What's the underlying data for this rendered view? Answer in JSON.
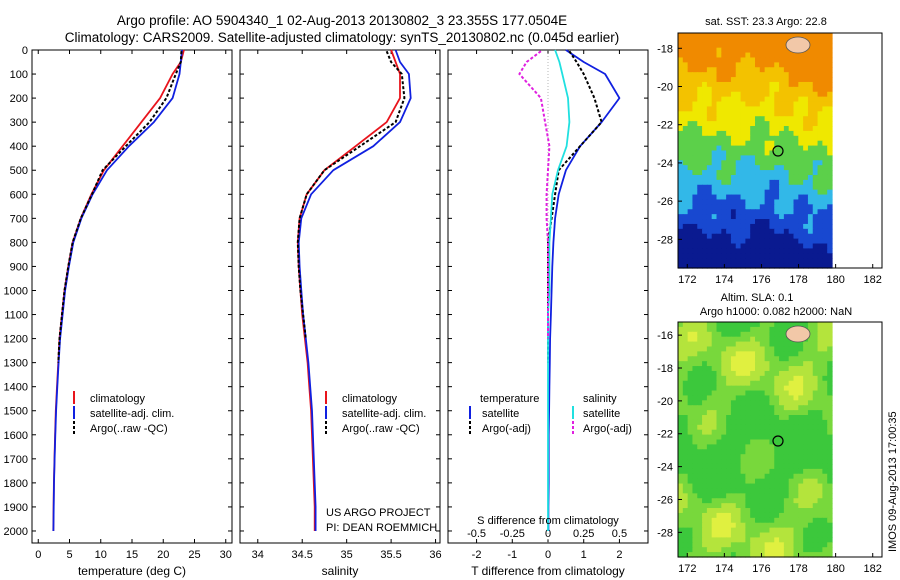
{
  "title_line1": "Argo profile: AO 5904340_1 02-Aug-2013 20130802_3 23.355S 177.0504E",
  "title_line2": "Climatology: CARS2009. Satellite-adjusted climatology: synTS_20130802.nc (0.045d earlier)",
  "depth_ticks": [
    "0",
    "100",
    "200",
    "300",
    "400",
    "500",
    "600",
    "700",
    "800",
    "900",
    "1000",
    "1100",
    "1200",
    "1300",
    "1400",
    "1500",
    "1600",
    "1700",
    "1800",
    "1900",
    "2000"
  ],
  "panel_temp": {
    "xlabel": "temperature (deg C)",
    "ticks": [
      "0",
      "5",
      "10",
      "15",
      "20",
      "25",
      "30"
    ],
    "legend": [
      "climatology",
      "satellite-adj. clim.",
      "Argo(..raw -QC)"
    ]
  },
  "panel_sal": {
    "xlabel": "salinity",
    "ticks": [
      "34",
      "34.5",
      "35",
      "35.5",
      "36"
    ],
    "legend": [
      "climatology",
      "satellite-adj. clim.",
      "Argo(..raw -QC)"
    ],
    "credit1": "US ARGO PROJECT",
    "credit2": "PI: DEAN ROEMMICH"
  },
  "panel_diff": {
    "top_ticks": [
      "-0.5",
      "-0.25",
      "0",
      "0.25",
      "0.5"
    ],
    "bottom_ticks": [
      "-2",
      "-1",
      "0",
      "1",
      "2"
    ],
    "top_label": "S difference from climatology",
    "bottom_label": "T difference from climatology",
    "legend_temp_header": "temperature",
    "legend_sal_header": "salinity",
    "legend_temp": [
      "satellite",
      "Argo(-adj)"
    ],
    "legend_sal": [
      "satellite",
      "Argo(-adj)"
    ]
  },
  "map_sst": {
    "title": "sat. SST: 23.3 Argo: 22.8",
    "yticks": [
      "-18",
      "-20",
      "-22",
      "-24",
      "-26",
      "-28"
    ],
    "xticks": [
      "172",
      "174",
      "176",
      "178",
      "180",
      "182"
    ]
  },
  "map_sla": {
    "title1": "Altim. SLA: 0.1",
    "title2": "Argo h1000: 0.082 h2000: NaN",
    "yticks": [
      "-16",
      "-18",
      "-20",
      "-22",
      "-24",
      "-26",
      "-28"
    ],
    "xticks": [
      "172",
      "174",
      "176",
      "178",
      "180",
      "182"
    ]
  },
  "side_stamp": "IMOS 09-Aug-2013 17:00:35",
  "colors": {
    "climatology": "#e8141c",
    "satellite": "#1020e0",
    "argo": "#000000",
    "sat_salinity": "#20e0e0",
    "argo_salinity": "#e020e0"
  },
  "chart_data": [
    {
      "type": "line",
      "xlabel": "temperature (deg C)",
      "ylabel": "",
      "xlim": [
        -1,
        31
      ],
      "ylim": [
        2050,
        0
      ],
      "series": [
        {
          "name": "climatology",
          "x": [
            23.3,
            22.8,
            21.5,
            19.5,
            16.5,
            13.5,
            10.5,
            8.5,
            6.8,
            5.5,
            4.8,
            4.2,
            3.8,
            3.4,
            3.2,
            3.0,
            2.8,
            2.7,
            2.6,
            2.5,
            2.45,
            2.4
          ],
          "y": [
            0,
            50,
            100,
            200,
            300,
            400,
            500,
            600,
            700,
            800,
            900,
            1000,
            1100,
            1200,
            1300,
            1400,
            1500,
            1600,
            1700,
            1800,
            1900,
            2000
          ]
        },
        {
          "name": "satellite-adj. clim.",
          "x": [
            23.0,
            22.8,
            22.6,
            21.5,
            18.5,
            14.5,
            11.0,
            8.7,
            6.9,
            5.6,
            4.9,
            4.3,
            3.9,
            3.5,
            3.25,
            3.05,
            2.85,
            2.72,
            2.62,
            2.52,
            2.47,
            2.42
          ],
          "y": [
            0,
            50,
            100,
            200,
            300,
            400,
            500,
            600,
            700,
            800,
            900,
            1000,
            1100,
            1200,
            1300,
            1400,
            1500,
            1600,
            1700,
            1800,
            1900,
            2000
          ]
        },
        {
          "name": "Argo(..raw -QC)",
          "x": [
            22.9,
            22.8,
            22.0,
            20.5,
            17.8,
            14.0,
            10.3,
            8.6,
            6.8,
            5.5,
            4.8,
            4.2,
            3.8,
            3.4,
            3.2
          ],
          "y": [
            5,
            50,
            100,
            200,
            300,
            400,
            500,
            600,
            700,
            800,
            900,
            1000,
            1100,
            1200,
            1300
          ]
        }
      ]
    },
    {
      "type": "line",
      "xlabel": "salinity",
      "ylabel": "",
      "xlim": [
        33.8,
        36.05
      ],
      "ylim": [
        2050,
        0
      ],
      "series": [
        {
          "name": "climatology",
          "x": [
            35.5,
            35.55,
            35.6,
            35.6,
            35.45,
            35.1,
            34.75,
            34.55,
            34.47,
            34.45,
            34.46,
            34.48,
            34.5,
            34.53,
            34.56,
            34.58,
            34.6,
            34.61,
            34.62,
            34.63,
            34.64,
            34.64
          ],
          "y": [
            0,
            50,
            100,
            200,
            300,
            400,
            500,
            600,
            700,
            800,
            900,
            1000,
            1100,
            1200,
            1300,
            1400,
            1500,
            1600,
            1700,
            1800,
            1900,
            2000
          ]
        },
        {
          "name": "satellite-adj. clim.",
          "x": [
            35.55,
            35.6,
            35.7,
            35.72,
            35.6,
            35.3,
            34.85,
            34.6,
            34.49,
            34.46,
            34.47,
            34.49,
            34.51,
            34.54,
            34.57,
            34.59,
            34.61,
            34.62,
            34.63,
            34.64,
            34.65,
            34.65
          ],
          "y": [
            0,
            50,
            100,
            200,
            300,
            400,
            500,
            600,
            700,
            800,
            900,
            1000,
            1100,
            1200,
            1300,
            1400,
            1500,
            1600,
            1700,
            1800,
            1900,
            2000
          ]
        },
        {
          "name": "Argo(..raw -QC)",
          "x": [
            35.45,
            35.5,
            35.62,
            35.65,
            35.55,
            35.15,
            34.75,
            34.55,
            34.47,
            34.45,
            34.46,
            34.48,
            34.51,
            34.54
          ],
          "y": [
            5,
            50,
            100,
            200,
            300,
            400,
            500,
            600,
            700,
            800,
            900,
            1000,
            1100,
            1200
          ]
        }
      ]
    },
    {
      "type": "line",
      "xlabel": "T difference from climatology",
      "ylabel": "",
      "xlim": [
        -2.8,
        2.8
      ],
      "x2label": "S difference from climatology",
      "x2lim": [
        -0.7,
        0.7
      ],
      "ylim": [
        2050,
        0
      ],
      "series": [
        {
          "name": "temperature satellite",
          "x": [
            0.5,
            1.0,
            1.6,
            2.0,
            1.5,
            0.9,
            0.5,
            0.3,
            0.2,
            0.15,
            0.12,
            0.1,
            0.08,
            0.06,
            0.05,
            0.04,
            0.03,
            0.02,
            0.02,
            0.02,
            0.01,
            0.01
          ],
          "y": [
            0,
            50,
            100,
            200,
            300,
            400,
            500,
            600,
            700,
            800,
            900,
            1000,
            1100,
            1200,
            1300,
            1400,
            1500,
            1600,
            1700,
            1800,
            1900,
            2000
          ]
        },
        {
          "name": "temperature Argo(-adj)",
          "x": [
            0.6,
            0.8,
            1.0,
            1.3,
            1.5,
            0.9,
            0.3,
            0.2,
            0.1,
            0.0,
            0.0,
            0.0,
            0.0,
            0.0,
            0.0
          ],
          "y": [
            5,
            50,
            100,
            200,
            300,
            400,
            500,
            600,
            700,
            800,
            900,
            1000,
            1100,
            1200,
            1300
          ]
        },
        {
          "name": "salinity satellite",
          "x": [
            0.05,
            0.08,
            0.1,
            0.14,
            0.15,
            0.13,
            0.07,
            0.03,
            0.02,
            0.01,
            0.01,
            0.01,
            0.0,
            0.0,
            0.0,
            0.0,
            0.0,
            0.0,
            0.0,
            0.0,
            0.0,
            0.0
          ],
          "y": [
            0,
            50,
            100,
            200,
            300,
            400,
            500,
            600,
            700,
            800,
            900,
            1000,
            1100,
            1200,
            1300,
            1400,
            1500,
            1600,
            1700,
            1800,
            1900,
            2000
          ]
        },
        {
          "name": "salinity Argo(-adj)",
          "x": [
            -0.05,
            -0.15,
            -0.2,
            -0.05,
            -0.02,
            0.01,
            0.0,
            -0.01,
            -0.01,
            0.0,
            0.0,
            0.0,
            0.0,
            0.0
          ],
          "y": [
            5,
            50,
            100,
            200,
            300,
            400,
            500,
            600,
            700,
            800,
            900,
            1000,
            1100,
            1200
          ]
        }
      ]
    },
    {
      "type": "heatmap",
      "title": "sat. SST: 23.3 Argo: 22.8",
      "xlim": [
        171.5,
        182.5
      ],
      "ylim": [
        -29.5,
        -17.2
      ],
      "colors_by_band": [
        "#f08a00",
        "#f3c200",
        "#efe800",
        "#5cd04a",
        "#32b8e8",
        "#1848d0",
        "#0a1a90"
      ],
      "marker": {
        "lon": 177.05,
        "lat": -23.36
      }
    },
    {
      "type": "heatmap",
      "title": "Altim. SLA: 0.1",
      "xlim": [
        171.5,
        182.5
      ],
      "ylim": [
        -29.5,
        -15.2
      ],
      "colors_by_band": [
        "#3cc83c",
        "#78d83c",
        "#b4e43c",
        "#e0f040"
      ],
      "marker": {
        "lon": 177.05,
        "lat": -23.36
      }
    }
  ]
}
